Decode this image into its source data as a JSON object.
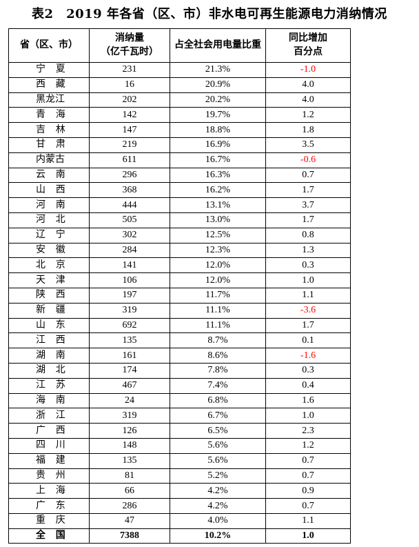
{
  "title": "表2　2019 年各省（区、市）非水电可再生能源电力消纳情况",
  "headers": {
    "province": "省（区、市）",
    "consumption_line1": "消纳量",
    "consumption_line2": "（亿千瓦时）",
    "share": "占全社会用电量比重",
    "yoy_line1": "同比增加",
    "yoy_line2": "百分点"
  },
  "colors": {
    "negative": "#ff0000"
  },
  "rows": [
    {
      "province": "宁夏",
      "consumption": "231",
      "share": "21.3%",
      "yoy": "-1.0"
    },
    {
      "province": "西藏",
      "consumption": "16",
      "share": "20.9%",
      "yoy": "4.0"
    },
    {
      "province": "黑龙江",
      "consumption": "202",
      "share": "20.2%",
      "yoy": "4.0"
    },
    {
      "province": "青海",
      "consumption": "142",
      "share": "19.7%",
      "yoy": "1.2"
    },
    {
      "province": "吉林",
      "consumption": "147",
      "share": "18.8%",
      "yoy": "1.8"
    },
    {
      "province": "甘肃",
      "consumption": "219",
      "share": "16.9%",
      "yoy": "3.5"
    },
    {
      "province": "内蒙古",
      "consumption": "611",
      "share": "16.7%",
      "yoy": "-0.6"
    },
    {
      "province": "云南",
      "consumption": "296",
      "share": "16.3%",
      "yoy": "0.7"
    },
    {
      "province": "山西",
      "consumption": "368",
      "share": "16.2%",
      "yoy": "1.7"
    },
    {
      "province": "河南",
      "consumption": "444",
      "share": "13.1%",
      "yoy": "3.7"
    },
    {
      "province": "河北",
      "consumption": "505",
      "share": "13.0%",
      "yoy": "1.7"
    },
    {
      "province": "辽宁",
      "consumption": "302",
      "share": "12.5%",
      "yoy": "0.8"
    },
    {
      "province": "安徽",
      "consumption": "284",
      "share": "12.3%",
      "yoy": "1.3"
    },
    {
      "province": "北京",
      "consumption": "141",
      "share": "12.0%",
      "yoy": "0.3"
    },
    {
      "province": "天津",
      "consumption": "106",
      "share": "12.0%",
      "yoy": "1.0"
    },
    {
      "province": "陕西",
      "consumption": "197",
      "share": "11.7%",
      "yoy": "1.1"
    },
    {
      "province": "新疆",
      "consumption": "319",
      "share": "11.1%",
      "yoy": "-3.6"
    },
    {
      "province": "山东",
      "consumption": "692",
      "share": "11.1%",
      "yoy": "1.7"
    },
    {
      "province": "江西",
      "consumption": "135",
      "share": "8.7%",
      "yoy": "0.1"
    },
    {
      "province": "湖南",
      "consumption": "161",
      "share": "8.6%",
      "yoy": "-1.6"
    },
    {
      "province": "湖北",
      "consumption": "174",
      "share": "7.8%",
      "yoy": "0.3"
    },
    {
      "province": "江苏",
      "consumption": "467",
      "share": "7.4%",
      "yoy": "0.4"
    },
    {
      "province": "海南",
      "consumption": "24",
      "share": "6.8%",
      "yoy": "1.6"
    },
    {
      "province": "浙江",
      "consumption": "319",
      "share": "6.7%",
      "yoy": "1.0"
    },
    {
      "province": "广西",
      "consumption": "126",
      "share": "6.5%",
      "yoy": "2.3"
    },
    {
      "province": "四川",
      "consumption": "148",
      "share": "5.6%",
      "yoy": "1.2"
    },
    {
      "province": "福建",
      "consumption": "135",
      "share": "5.6%",
      "yoy": "0.7"
    },
    {
      "province": "贵州",
      "consumption": "81",
      "share": "5.2%",
      "yoy": "0.7"
    },
    {
      "province": "上海",
      "consumption": "66",
      "share": "4.2%",
      "yoy": "0.9"
    },
    {
      "province": "广东",
      "consumption": "286",
      "share": "4.2%",
      "yoy": "0.7"
    },
    {
      "province": "重庆",
      "consumption": "47",
      "share": "4.0%",
      "yoy": "1.1"
    }
  ],
  "total": {
    "province": "全国",
    "consumption": "7388",
    "share": "10.2%",
    "yoy": "1.0"
  }
}
